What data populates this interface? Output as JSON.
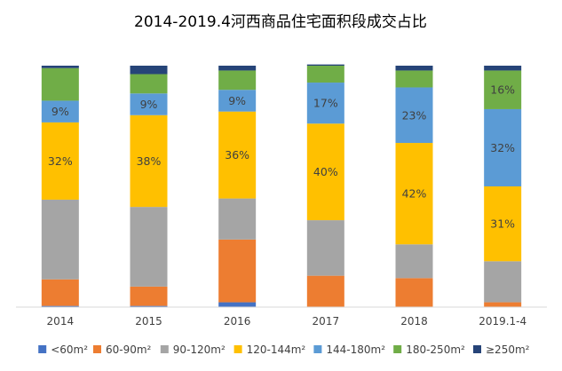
{
  "chart_data": {
    "type": "bar",
    "stacked": true,
    "normalized": true,
    "title": "2014-2019.4河西商品住宅面积段成交占比",
    "categories": [
      "2014",
      "2015",
      "2016",
      "2017",
      "2018",
      "2019.1-4"
    ],
    "series": [
      {
        "name": "<60m²",
        "color": "#4472C4",
        "values": [
          0.5,
          0.5,
          2,
          0,
          0,
          0
        ]
      },
      {
        "name": "60-90m²",
        "color": "#ED7D31",
        "values": [
          11,
          8,
          26,
          13,
          12,
          2
        ]
      },
      {
        "name": "90-120m²",
        "color": "#A5A5A5",
        "values": [
          33,
          33,
          17,
          23,
          14,
          17
        ]
      },
      {
        "name": "120-144m²",
        "color": "#FFC000",
        "values": [
          32,
          38,
          36,
          40,
          42,
          31
        ]
      },
      {
        "name": "144-180m²",
        "color": "#5B9BD5",
        "values": [
          9,
          9,
          9,
          17,
          23,
          32
        ]
      },
      {
        "name": "180-250m²",
        "color": "#70AD47",
        "values": [
          13.5,
          8,
          8,
          7,
          7,
          16
        ]
      },
      {
        "name": "≥250m²",
        "color": "#264478",
        "values": [
          1,
          3.5,
          2,
          0.5,
          2,
          2
        ]
      }
    ],
    "data_labels": [
      {
        "series": "120-144m²",
        "values": [
          "32%",
          "38%",
          "36%",
          "40%",
          "42%",
          "31%"
        ]
      },
      {
        "series": "144-180m²",
        "values": [
          "9%",
          "9%",
          "9%",
          "17%",
          "23%",
          "32%"
        ]
      },
      {
        "series": "180-250m²",
        "values": [
          null,
          null,
          null,
          null,
          null,
          "16%"
        ]
      }
    ],
    "ylim": [
      0,
      100
    ],
    "grid": false,
    "legend_position": "bottom"
  }
}
